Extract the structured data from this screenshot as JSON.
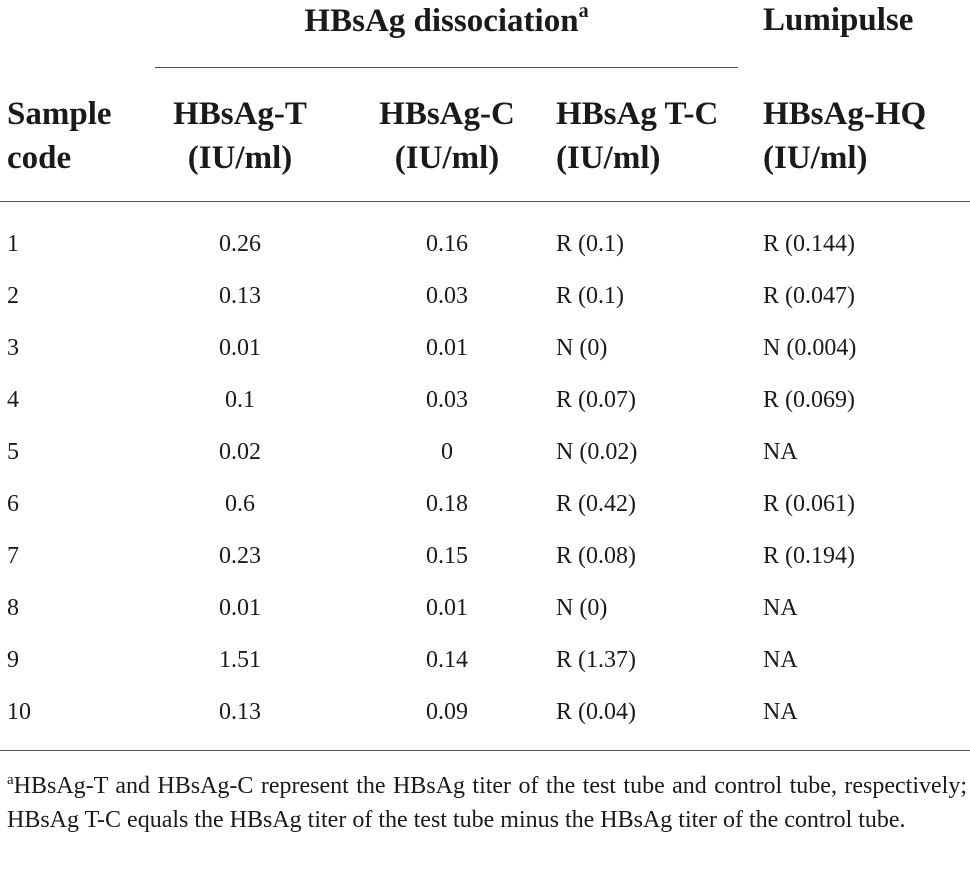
{
  "group_headers": {
    "dissociation": "HBsAg dissociation",
    "dissociation_marker": "a",
    "lumipulse": "Lumipulse"
  },
  "columns": {
    "sample": [
      "Sample",
      "code"
    ],
    "t": [
      "HBsAg-T",
      "(IU/ml)"
    ],
    "c": [
      "HBsAg-C",
      "(IU/ml)"
    ],
    "tc": [
      "HBsAg T-C",
      "(IU/ml)"
    ],
    "hq": [
      "HBsAg-HQ",
      "(IU/ml)"
    ]
  },
  "rows": [
    {
      "code": "1",
      "t": "0.26",
      "c": "0.16",
      "tc": "R (0.1)",
      "hq": "R (0.144)"
    },
    {
      "code": "2",
      "t": "0.13",
      "c": "0.03",
      "tc": "R (0.1)",
      "hq": "R (0.047)"
    },
    {
      "code": "3",
      "t": "0.01",
      "c": "0.01",
      "tc": "N (0)",
      "hq": "N (0.004)"
    },
    {
      "code": "4",
      "t": "0.1",
      "c": "0.03",
      "tc": "R (0.07)",
      "hq": "R (0.069)"
    },
    {
      "code": "5",
      "t": "0.02",
      "c": "0",
      "tc": "N (0.02)",
      "hq": "NA"
    },
    {
      "code": "6",
      "t": "0.6",
      "c": "0.18",
      "tc": "R (0.42)",
      "hq": "R (0.061)"
    },
    {
      "code": "7",
      "t": "0.23",
      "c": "0.15",
      "tc": "R (0.08)",
      "hq": "R (0.194)"
    },
    {
      "code": "8",
      "t": "0.01",
      "c": "0.01",
      "tc": "N (0)",
      "hq": "NA"
    },
    {
      "code": "9",
      "t": "1.51",
      "c": "0.14",
      "tc": "R (1.37)",
      "hq": "NA"
    },
    {
      "code": "10",
      "t": "0.13",
      "c": "0.09",
      "tc": "R (0.04)",
      "hq": "NA"
    }
  ],
  "footnote": {
    "marker": "a",
    "text": "HBsAg-T and HBsAg-C represent the HBsAg titer of the test tube and control tube, respectively; HBsAg T-C equals the HBsAg titer of the test tube minus the HBsAg titer of the control tube."
  }
}
